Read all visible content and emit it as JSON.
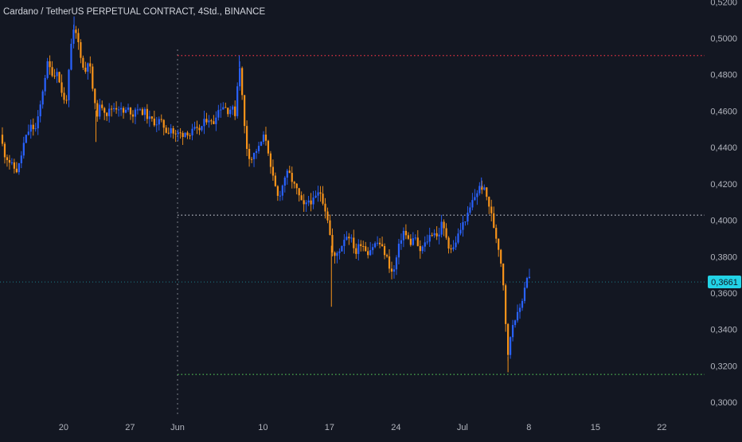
{
  "header": {
    "title": "Cardano / TetherUS PERPETUAL CONTRACT, 4Std., BINANCE"
  },
  "colors": {
    "background": "#131722",
    "up_candle": "#2962ff",
    "down_candle": "#f7931a",
    "resistance_line": "#f23645",
    "level_line": "#b2b5be",
    "support_line": "#4caf50",
    "price_badge": "#22d3e6",
    "axis_text": "#b2b5be"
  },
  "chart_data": {
    "type": "candlestick",
    "price_axis": {
      "ticks": [
        "0,5200",
        "0,5000",
        "0,4800",
        "0,4600",
        "0,4400",
        "0,4200",
        "0,4000",
        "0,3800",
        "0,3600",
        "0,3400",
        "0,3200",
        "0,3000"
      ],
      "tick_values": [
        0.52,
        0.5,
        0.48,
        0.46,
        0.44,
        0.42,
        0.4,
        0.38,
        0.36,
        0.34,
        0.32,
        0.3
      ],
      "ylim": [
        0.2935,
        0.521
      ]
    },
    "time_axis": {
      "xlim": [
        13.3,
        87.5
      ],
      "ticks": [
        {
          "label": "20",
          "day": 20
        },
        {
          "label": "27",
          "day": 27
        },
        {
          "label": "Jun",
          "day": 32
        },
        {
          "label": "10",
          "day": 41
        },
        {
          "label": "17",
          "day": 48
        },
        {
          "label": "24",
          "day": 55
        },
        {
          "label": "Jul",
          "day": 62
        },
        {
          "label": "8",
          "day": 69
        },
        {
          "label": "15",
          "day": 76
        },
        {
          "label": "22",
          "day": 83
        }
      ]
    },
    "current_price": {
      "label": "0,3661",
      "value": 0.3661
    },
    "vertical_marker_day": 32,
    "horizontal_levels": [
      {
        "name": "resistance",
        "value": 0.4905,
        "from_day": 32
      },
      {
        "name": "level",
        "value": 0.4028,
        "from_day": 32
      },
      {
        "name": "support",
        "value": 0.3153,
        "from_day": 32
      }
    ],
    "price_path": [
      [
        13.3,
        0.447
      ],
      [
        13.8,
        0.436
      ],
      [
        14.2,
        0.433
      ],
      [
        14.7,
        0.429
      ],
      [
        15.1,
        0.427
      ],
      [
        15.4,
        0.432
      ],
      [
        15.8,
        0.442
      ],
      [
        16.2,
        0.448
      ],
      [
        16.6,
        0.452
      ],
      [
        17.0,
        0.449
      ],
      [
        17.4,
        0.458
      ],
      [
        17.9,
        0.475
      ],
      [
        18.3,
        0.486
      ],
      [
        18.7,
        0.482
      ],
      [
        19.0,
        0.479
      ],
      [
        19.3,
        0.483
      ],
      [
        19.6,
        0.474
      ],
      [
        19.9,
        0.469
      ],
      [
        20.2,
        0.462
      ],
      [
        20.5,
        0.478
      ],
      [
        20.8,
        0.496
      ],
      [
        21.1,
        0.505
      ],
      [
        21.4,
        0.501
      ],
      [
        21.7,
        0.494
      ],
      [
        22.0,
        0.484
      ],
      [
        22.3,
        0.482
      ],
      [
        22.6,
        0.489
      ],
      [
        22.9,
        0.48
      ],
      [
        23.2,
        0.465
      ],
      [
        23.5,
        0.458
      ],
      [
        23.8,
        0.462
      ],
      [
        24.1,
        0.463
      ],
      [
        24.5,
        0.458
      ],
      [
        24.9,
        0.461
      ],
      [
        25.3,
        0.462
      ],
      [
        25.8,
        0.462
      ],
      [
        26.3,
        0.459
      ],
      [
        26.8,
        0.461
      ],
      [
        27.3,
        0.458
      ],
      [
        27.7,
        0.463
      ],
      [
        28.1,
        0.459
      ],
      [
        28.5,
        0.46
      ],
      [
        28.9,
        0.456
      ],
      [
        29.3,
        0.455
      ],
      [
        29.7,
        0.453
      ],
      [
        30.1,
        0.455
      ],
      [
        30.5,
        0.452
      ],
      [
        30.9,
        0.448
      ],
      [
        31.3,
        0.451
      ],
      [
        31.7,
        0.446
      ],
      [
        32.1,
        0.448
      ],
      [
        32.5,
        0.447
      ],
      [
        32.9,
        0.449
      ],
      [
        33.3,
        0.447
      ],
      [
        33.7,
        0.45
      ],
      [
        34.1,
        0.449
      ],
      [
        34.5,
        0.451
      ],
      [
        34.9,
        0.455
      ],
      [
        35.3,
        0.456
      ],
      [
        35.7,
        0.452
      ],
      [
        36.1,
        0.459
      ],
      [
        36.5,
        0.462
      ],
      [
        36.9,
        0.463
      ],
      [
        37.3,
        0.46
      ],
      [
        37.7,
        0.462
      ],
      [
        38.1,
        0.458
      ],
      [
        38.4,
        0.482
      ],
      [
        38.6,
        0.486
      ],
      [
        38.8,
        0.468
      ],
      [
        39.1,
        0.448
      ],
      [
        39.4,
        0.436
      ],
      [
        39.8,
        0.434
      ],
      [
        40.2,
        0.438
      ],
      [
        40.6,
        0.44
      ],
      [
        41.0,
        0.446
      ],
      [
        41.4,
        0.444
      ],
      [
        41.8,
        0.428
      ],
      [
        42.2,
        0.42
      ],
      [
        42.6,
        0.412
      ],
      [
        43.0,
        0.418
      ],
      [
        43.4,
        0.426
      ],
      [
        43.8,
        0.425
      ],
      [
        44.2,
        0.42
      ],
      [
        44.6,
        0.416
      ],
      [
        45.0,
        0.41
      ],
      [
        45.4,
        0.407
      ],
      [
        45.8,
        0.411
      ],
      [
        46.2,
        0.41
      ],
      [
        46.6,
        0.413
      ],
      [
        47.0,
        0.416
      ],
      [
        47.4,
        0.409
      ],
      [
        47.8,
        0.401
      ],
      [
        48.1,
        0.39
      ],
      [
        48.4,
        0.378
      ],
      [
        48.8,
        0.382
      ],
      [
        49.2,
        0.385
      ],
      [
        49.6,
        0.391
      ],
      [
        50.0,
        0.392
      ],
      [
        50.4,
        0.388
      ],
      [
        50.8,
        0.382
      ],
      [
        51.2,
        0.388
      ],
      [
        51.6,
        0.386
      ],
      [
        52.0,
        0.382
      ],
      [
        52.4,
        0.385
      ],
      [
        52.8,
        0.387
      ],
      [
        53.2,
        0.388
      ],
      [
        53.6,
        0.384
      ],
      [
        54.0,
        0.38
      ],
      [
        54.4,
        0.373
      ],
      [
        54.7,
        0.37
      ],
      [
        55.0,
        0.378
      ],
      [
        55.4,
        0.388
      ],
      [
        55.8,
        0.394
      ],
      [
        56.2,
        0.39
      ],
      [
        56.6,
        0.387
      ],
      [
        57.0,
        0.392
      ],
      [
        57.4,
        0.382
      ],
      [
        57.8,
        0.385
      ],
      [
        58.2,
        0.388
      ],
      [
        58.6,
        0.392
      ],
      [
        59.0,
        0.394
      ],
      [
        59.4,
        0.39
      ],
      [
        59.8,
        0.398
      ],
      [
        60.2,
        0.393
      ],
      [
        60.6,
        0.385
      ],
      [
        61.0,
        0.384
      ],
      [
        61.4,
        0.39
      ],
      [
        61.8,
        0.395
      ],
      [
        62.2,
        0.4
      ],
      [
        62.6,
        0.403
      ],
      [
        63.0,
        0.41
      ],
      [
        63.4,
        0.414
      ],
      [
        63.8,
        0.418
      ],
      [
        64.2,
        0.418
      ],
      [
        64.6,
        0.412
      ],
      [
        65.0,
        0.404
      ],
      [
        65.4,
        0.394
      ],
      [
        65.8,
        0.385
      ],
      [
        66.2,
        0.372
      ],
      [
        66.5,
        0.352
      ],
      [
        66.7,
        0.32
      ],
      [
        67.0,
        0.335
      ],
      [
        67.4,
        0.346
      ],
      [
        67.8,
        0.348
      ],
      [
        68.2,
        0.354
      ],
      [
        68.6,
        0.365
      ],
      [
        68.9,
        0.371
      ],
      [
        69.2,
        0.366
      ]
    ]
  }
}
